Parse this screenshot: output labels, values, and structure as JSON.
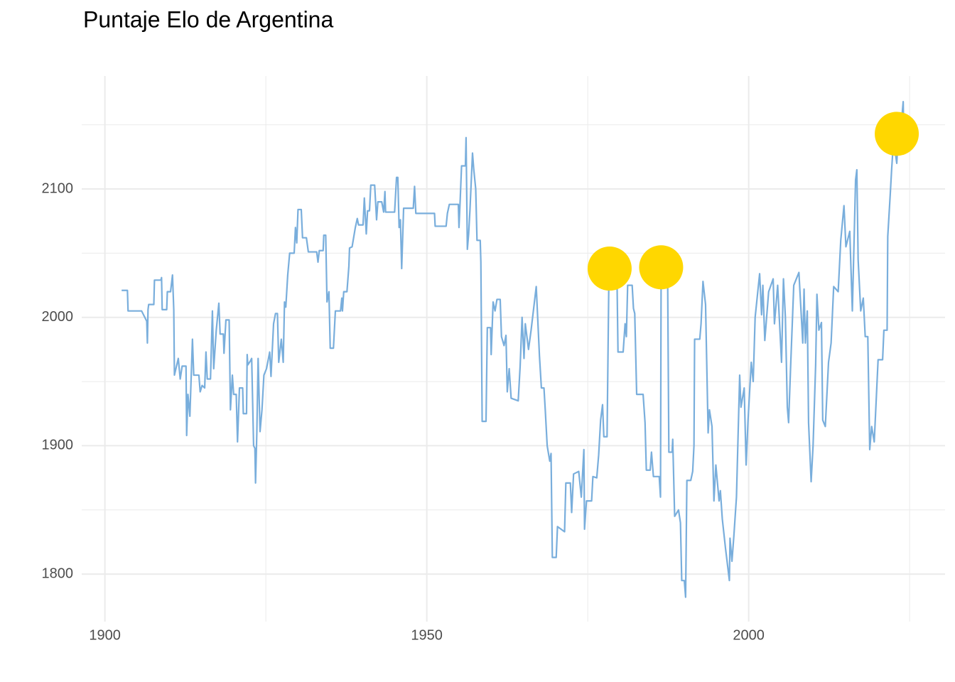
{
  "chart_data": {
    "type": "line",
    "title": "Puntaje Elo de Argentina",
    "x": [
      1902.6,
      1903.5,
      1903.6,
      1905.7,
      1906.5,
      1906.6,
      1906.7,
      1906.8,
      1907.6,
      1907.7,
      1908.7,
      1908.8,
      1908.9,
      1909.6,
      1909.7,
      1910.2,
      1910.5,
      1910.7,
      1910.8,
      1911.4,
      1911.7,
      1912.0,
      1912.6,
      1912.7,
      1912.9,
      1913.2,
      1913.6,
      1913.8,
      1914.6,
      1914.8,
      1915.1,
      1915.5,
      1915.7,
      1915.9,
      1916.4,
      1916.7,
      1916.9,
      1917.3,
      1917.7,
      1917.9,
      1918.4,
      1918.5,
      1918.8,
      1919.3,
      1919.5,
      1919.8,
      1920.0,
      1920.4,
      1920.6,
      1920.9,
      1921.4,
      1921.5,
      1922.0,
      1922.1,
      1922.2,
      1922.6,
      1922.8,
      1923.1,
      1923.3,
      1923.4,
      1923.6,
      1923.8,
      1924.1,
      1924.4,
      1924.7,
      1925.1,
      1925.6,
      1925.8,
      1926.2,
      1926.5,
      1926.8,
      1927.0,
      1927.4,
      1927.7,
      1927.9,
      1928.1,
      1928.4,
      1928.7,
      1929.4,
      1929.6,
      1929.8,
      1930.0,
      1930.5,
      1930.7,
      1931.3,
      1931.6,
      1932.9,
      1933.1,
      1933.3,
      1933.9,
      1934.0,
      1934.3,
      1934.5,
      1934.8,
      1935.0,
      1935.5,
      1935.8,
      1936.6,
      1936.8,
      1936.9,
      1937.1,
      1937.6,
      1937.9,
      1938.0,
      1938.4,
      1938.9,
      1939.2,
      1939.4,
      1940.1,
      1940.3,
      1940.6,
      1940.8,
      1941.1,
      1941.3,
      1941.9,
      1942.2,
      1942.4,
      1943.0,
      1943.3,
      1943.5,
      1943.6,
      1945.0,
      1945.3,
      1945.5,
      1945.7,
      1945.9,
      1946.1,
      1946.4,
      1947.9,
      1948.1,
      1948.3,
      1949.7,
      1951.2,
      1951.3,
      1953.0,
      1953.2,
      1953.5,
      1954.9,
      1955.0,
      1955.2,
      1955.4,
      1956.0,
      1956.1,
      1956.3,
      1956.5,
      1956.7,
      1957.1,
      1957.3,
      1957.6,
      1957.8,
      1958.3,
      1958.4,
      1958.6,
      1959.2,
      1959.4,
      1959.9,
      1960.0,
      1960.3,
      1960.6,
      1960.9,
      1961.4,
      1961.6,
      1962.0,
      1962.3,
      1962.5,
      1962.8,
      1963.1,
      1964.2,
      1964.5,
      1964.8,
      1965.1,
      1965.3,
      1965.8,
      1966.2,
      1967.0,
      1967.5,
      1967.8,
      1968.2,
      1968.4,
      1968.7,
      1969.1,
      1969.3,
      1969.5,
      1970.1,
      1970.3,
      1971.4,
      1971.6,
      1972.3,
      1972.5,
      1972.8,
      1973.6,
      1974.0,
      1974.4,
      1974.5,
      1974.8,
      1975.6,
      1975.8,
      1976.4,
      1976.7,
      1977.0,
      1977.3,
      1977.5,
      1978.0,
      1978.3,
      1979.2,
      1979.5,
      1979.7,
      1980.5,
      1980.8,
      1981.0,
      1981.2,
      1981.9,
      1982.1,
      1982.3,
      1982.6,
      1983.6,
      1983.9,
      1984.1,
      1984.7,
      1984.9,
      1985.2,
      1986.1,
      1986.3,
      1986.4,
      1987.4,
      1987.6,
      1988.1,
      1988.2,
      1988.5,
      1989.1,
      1989.4,
      1989.6,
      1990.0,
      1990.2,
      1990.4,
      1991.0,
      1991.3,
      1991.5,
      1991.6,
      1992.4,
      1992.6,
      1992.9,
      1993.3,
      1993.7,
      1993.9,
      1994.3,
      1994.6,
      1994.9,
      1995.4,
      1995.6,
      1995.9,
      1996.4,
      1997.0,
      1997.1,
      1997.4,
      1997.7,
      1998.1,
      1998.6,
      1998.8,
      1999.3,
      1999.6,
      1999.9,
      2000.4,
      2000.7,
      2001.0,
      2001.7,
      2002.0,
      2002.2,
      2002.5,
      2003.1,
      2003.8,
      2004.0,
      2004.5,
      2005.1,
      2005.4,
      2005.7,
      2006.0,
      2006.2,
      2006.5,
      2007.0,
      2007.8,
      2008.4,
      2008.6,
      2008.8,
      2009.1,
      2009.3,
      2009.5,
      2009.7,
      2010.0,
      2010.4,
      2010.6,
      2010.9,
      2011.3,
      2011.5,
      2011.9,
      2012.4,
      2012.8,
      2013.2,
      2013.9,
      2014.3,
      2014.8,
      2015.1,
      2015.7,
      2016.1,
      2016.6,
      2016.8,
      2017.0,
      2017.4,
      2017.8,
      2018.1,
      2018.5,
      2018.8,
      2019.1,
      2019.5,
      2020.1,
      2020.8,
      2021.0,
      2021.5,
      2021.6,
      2022.0,
      2022.2,
      2022.5,
      2023.0,
      2023.2,
      2023.6,
      2024.0,
      2024.1,
      2024.4
    ],
    "values": [
      2021,
      2021,
      2005,
      2005,
      1997,
      1980,
      2006,
      2010,
      2010,
      2029,
      2029,
      2031,
      2006,
      2006,
      2020,
      2020,
      2033,
      2006,
      1955,
      1968,
      1952,
      1962,
      1962,
      1908,
      1940,
      1923,
      1983,
      1955,
      1955,
      1942,
      1947,
      1945,
      1973,
      1952,
      1952,
      2005,
      1960,
      1990,
      2011,
      1987,
      1987,
      1972,
      1998,
      1998,
      1928,
      1955,
      1940,
      1940,
      1903,
      1945,
      1945,
      1925,
      1925,
      1971,
      1963,
      1966,
      1968,
      1900,
      1898,
      1871,
      1910,
      1968,
      1911,
      1928,
      1955,
      1960,
      1973,
      1954,
      1995,
      2003,
      2003,
      1965,
      1983,
      1965,
      2012,
      2008,
      2033,
      2050,
      2050,
      2070,
      2058,
      2084,
      2084,
      2062,
      2062,
      2051,
      2051,
      2043,
      2052,
      2052,
      2064,
      2064,
      2012,
      2020,
      1976,
      1976,
      2005,
      2005,
      2015,
      2005,
      2020,
      2020,
      2040,
      2054,
      2055,
      2070,
      2077,
      2072,
      2072,
      2093,
      2065,
      2083,
      2083,
      2103,
      2103,
      2076,
      2090,
      2090,
      2082,
      2098,
      2082,
      2082,
      2109,
      2109,
      2070,
      2076,
      2038,
      2085,
      2085,
      2102,
      2081,
      2081,
      2081,
      2071,
      2071,
      2081,
      2088,
      2088,
      2070,
      2093,
      2118,
      2118,
      2140,
      2053,
      2065,
      2083,
      2128,
      2115,
      2100,
      2060,
      2060,
      2043,
      1919,
      1919,
      1992,
      1992,
      1971,
      2012,
      2005,
      2014,
      2014,
      1985,
      1978,
      1986,
      1942,
      1960,
      1937,
      1935,
      1962,
      2000,
      1968,
      1995,
      1975,
      1990,
      2024,
      1970,
      1945,
      1945,
      1928,
      1900,
      1888,
      1894,
      1813,
      1813,
      1837,
      1833,
      1871,
      1871,
      1848,
      1878,
      1880,
      1860,
      1897,
      1835,
      1857,
      1857,
      1876,
      1875,
      1893,
      1920,
      1932,
      1907,
      1907,
      2038,
      2038,
      2046,
      1973,
      1973,
      1995,
      1985,
      2025,
      2025,
      2007,
      2003,
      1940,
      1940,
      1918,
      1881,
      1881,
      1895,
      1876,
      1876,
      1860,
      2039,
      2039,
      1895,
      1895,
      1905,
      1845,
      1850,
      1840,
      1795,
      1795,
      1782,
      1873,
      1873,
      1880,
      1900,
      1983,
      1983,
      1995,
      2028,
      2010,
      1910,
      1928,
      1915,
      1857,
      1885,
      1857,
      1865,
      1843,
      1820,
      1795,
      1828,
      1810,
      1830,
      1860,
      1955,
      1930,
      1945,
      1885,
      1920,
      1965,
      1950,
      2000,
      2034,
      2002,
      2025,
      1982,
      2020,
      2030,
      1995,
      2025,
      1965,
      2030,
      2000,
      1930,
      1918,
      1960,
      2025,
      2035,
      1980,
      2022,
      1980,
      2005,
      1918,
      1895,
      1872,
      1900,
      1963,
      2018,
      1990,
      1996,
      1920,
      1915,
      1965,
      1980,
      2024,
      2020,
      2060,
      2087,
      2055,
      2067,
      2005,
      2107,
      2115,
      2045,
      2005,
      2015,
      1985,
      1985,
      1897,
      1915,
      1903,
      1967,
      1967,
      1990,
      1990,
      2063,
      2097,
      2115,
      2138,
      2120,
      2140,
      2145,
      2168,
      2138,
      2138
    ],
    "color": "#79aedc",
    "highlights": {
      "x": [
        1978.4,
        1986.4,
        2023.0
      ],
      "values": [
        2038,
        2039,
        2143
      ],
      "color": "#FFD700"
    },
    "xlim": [
      1896.4,
      2030.5
    ],
    "ylim": [
      1763,
      2188
    ],
    "xticks": [
      1900,
      1950,
      2000
    ],
    "yticks": [
      1800,
      1900,
      2000,
      2100
    ],
    "x_minor_ticks": [
      1925,
      1975,
      2025
    ],
    "y_minor_ticks": [
      1850,
      1950,
      2050,
      2150
    ],
    "grid": true
  }
}
